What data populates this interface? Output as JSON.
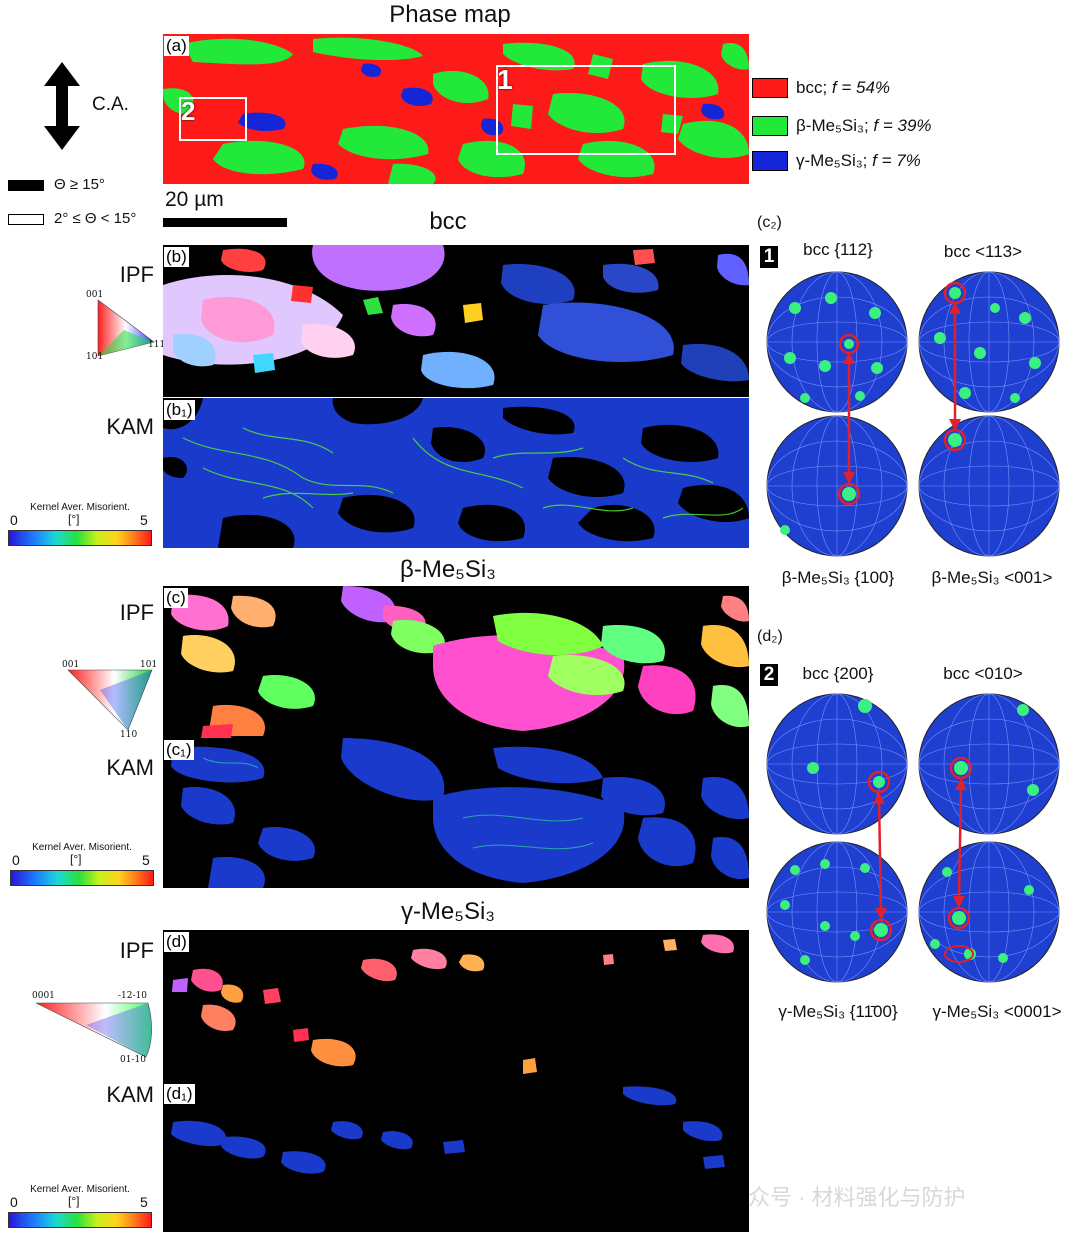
{
  "phase_map": {
    "title": "Phase map",
    "panel_tag": "(a)",
    "region_1": "1",
    "region_2": "2",
    "ca_label": "C.A.",
    "boundary_high": "Θ ≥ 15°",
    "boundary_low": "2° ≤ Θ < 15°",
    "scale_bar": "20 µm",
    "legend": [
      {
        "phase": "bcc",
        "fraction": "f = 54%",
        "color": "#ff1a1a"
      },
      {
        "phase": "β-Me₅Si₃",
        "fraction": "f = 39%",
        "color": "#22e83a"
      },
      {
        "phase": "γ-Me₅Si₃",
        "fraction": "f = 7%",
        "color": "#1426d8"
      }
    ]
  },
  "bcc": {
    "title": "bcc",
    "ipf_label": "IPF",
    "ipf_tag": "(b)",
    "kam_label": "KAM",
    "kam_tag": "(b₁)",
    "ipf_triangle": [
      "001",
      "111",
      "101"
    ],
    "kam_colorbar": {
      "title": "Kernel Aver. Misorient.",
      "min": "0",
      "unit": "[°]",
      "max": "5"
    }
  },
  "beta": {
    "title": "β-Me₅Si₃",
    "ipf_label": "IPF",
    "ipf_tag": "(c)",
    "kam_label": "KAM",
    "kam_tag": "(c₁)",
    "ipf_triangle": [
      "001",
      "101",
      "110"
    ],
    "kam_colorbar": {
      "title": "Kernel Aver. Misorient.",
      "min": "0",
      "unit": "[°]",
      "max": "5"
    }
  },
  "gamma": {
    "title": "γ-Me₅Si₃",
    "ipf_label": "IPF",
    "ipf_tag": "(d)",
    "kam_label": "KAM",
    "kam_tag": "(d₁)",
    "ipf_triangle": [
      "0001",
      "-12-10",
      "01-10"
    ],
    "kam_colorbar": {
      "title": "Kernel Aver. Misorient.",
      "min": "0",
      "unit": "[°]",
      "max": "5"
    }
  },
  "pole_figures_c2": {
    "tag": "(c₂)",
    "region": "1",
    "top_left": "bcc {112}",
    "top_right": "bcc <113>",
    "bottom_left": "β-Me₅Si₃ {100}",
    "bottom_right": "β-Me₅Si₃ <001>"
  },
  "pole_figures_d2": {
    "tag": "(d₂)",
    "region": "2",
    "top_left": "bcc {200}",
    "top_right": "bcc <010>",
    "bottom_left": "γ-Me₅Si₃ {11̄00}",
    "bottom_right": "γ-Me₅Si₃ <0001>"
  },
  "watermark": "众号 · 材料强化与防护"
}
